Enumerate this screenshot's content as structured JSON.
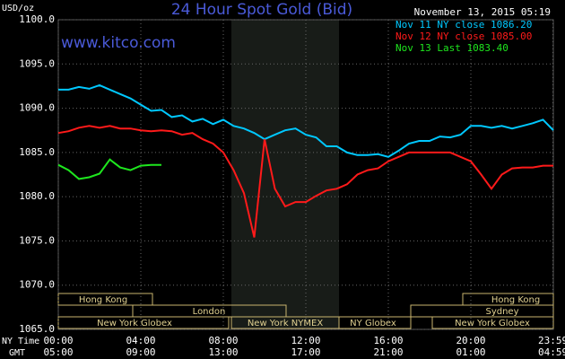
{
  "chart_data": {
    "type": "line",
    "title": "24 Hour Spot Gold (Bid)",
    "y_label": "USD/oz",
    "watermark": "www.kitco.com",
    "timestamp": "November 13, 2015 05:19",
    "x_label": "NY Time",
    "x2_label": "GMT",
    "x": [
      0,
      0.5,
      1,
      1.5,
      2,
      2.5,
      3,
      3.5,
      4,
      4.5,
      5,
      5.5,
      6,
      6.5,
      7,
      7.5,
      8,
      8.5,
      9,
      9.5,
      10,
      10.5,
      11,
      11.5,
      12,
      12.5,
      13,
      13.5,
      14,
      14.5,
      15,
      15.5,
      16,
      16.5,
      17,
      17.5,
      18,
      18.5,
      19,
      19.5,
      20,
      20.5,
      21,
      21.5,
      22,
      22.5,
      23,
      23.5,
      24
    ],
    "series": [
      {
        "name": "Nov 11 NY close 1086.20",
        "color": "#00c8ff",
        "values": [
          1092.1,
          1092.1,
          1092.4,
          1092.2,
          1092.6,
          1092.1,
          1091.6,
          1091.1,
          1090.4,
          1089.7,
          1089.8,
          1089.0,
          1089.2,
          1088.5,
          1088.8,
          1088.2,
          1088.7,
          1088.0,
          1087.7,
          1087.2,
          1086.5,
          1087.0,
          1087.5,
          1087.7,
          1087.0,
          1086.7,
          1085.7,
          1085.7,
          1085.0,
          1084.7,
          1084.7,
          1084.8,
          1084.5,
          1085.2,
          1086.0,
          1086.3,
          1086.3,
          1086.8,
          1086.7,
          1087.0,
          1088.0,
          1088.0,
          1087.8,
          1088.0,
          1087.7,
          1088.0,
          1088.3,
          1088.7,
          1087.5
        ]
      },
      {
        "name": "Nov 12 NY close 1085.00",
        "color": "#ff1a1a",
        "values": [
          1087.2,
          1087.4,
          1087.8,
          1088.0,
          1087.8,
          1088.0,
          1087.7,
          1087.7,
          1087.5,
          1087.4,
          1087.5,
          1087.4,
          1087.0,
          1087.2,
          1086.5,
          1086.0,
          1085.0,
          1083.0,
          1080.4,
          1075.4,
          1086.5,
          1080.9,
          1078.9,
          1079.4,
          1079.4,
          1080.1,
          1080.7,
          1080.9,
          1081.4,
          1082.5,
          1083.0,
          1083.2,
          1084.0,
          1084.5,
          1085.0,
          1085.0,
          1085.0,
          1085.0,
          1085.0,
          1084.5,
          1084.0,
          1082.5,
          1080.9,
          1082.5,
          1083.2,
          1083.3,
          1083.3,
          1083.5,
          1083.5
        ]
      },
      {
        "name": "Nov 13 Last 1083.40",
        "color": "#1ee61e",
        "values": [
          1083.6,
          1083.0,
          1082.0,
          1082.2,
          1082.6,
          1084.2,
          1083.3,
          1083.0,
          1083.5,
          1083.6,
          1083.6,
          null,
          null,
          null,
          null,
          null,
          null,
          null,
          null,
          null,
          null,
          null,
          null,
          null,
          null,
          null,
          null,
          null,
          null,
          null,
          null,
          null,
          null,
          null,
          null,
          null,
          null,
          null,
          null,
          null,
          null,
          null,
          null,
          null,
          null,
          null,
          null,
          null,
          null
        ]
      }
    ],
    "xlim": [
      0,
      24
    ],
    "ylim": [
      1065,
      1100
    ],
    "yticks": [
      {
        "value": 1065,
        "label": "1065.0"
      },
      {
        "value": 1070,
        "label": "1070.0"
      },
      {
        "value": 1075,
        "label": "1075.0"
      },
      {
        "value": 1080,
        "label": "1080.0"
      },
      {
        "value": 1085,
        "label": "1085.0"
      },
      {
        "value": 1090,
        "label": "1090.0"
      },
      {
        "value": 1095,
        "label": "1095.0"
      },
      {
        "value": 1100,
        "label": "1100.0"
      }
    ],
    "xticks": [
      {
        "value": 0,
        "label": "00:00"
      },
      {
        "value": 4,
        "label": "04:00"
      },
      {
        "value": 8,
        "label": "08:00"
      },
      {
        "value": 12,
        "label": "12:00"
      },
      {
        "value": 16,
        "label": "16:00"
      },
      {
        "value": 20,
        "label": "20:00"
      },
      {
        "value": 23.98,
        "label": "23:59"
      }
    ],
    "x2ticks": [
      {
        "value": 0,
        "label": "05:00"
      },
      {
        "value": 4,
        "label": "09:00"
      },
      {
        "value": 8,
        "label": "13:00"
      },
      {
        "value": 12,
        "label": "17:00"
      },
      {
        "value": 16,
        "label": "21:00"
      },
      {
        "value": 20,
        "label": "01:00"
      },
      {
        "value": 23.98,
        "label": "04:59"
      }
    ],
    "sessions": [
      "Hong Kong",
      "Hong Kong",
      "London",
      "Sydney",
      "New York Globex",
      "New York NYMEX",
      "NY Globex",
      "New York Globex"
    ],
    "grid": true,
    "legend": "upper right"
  }
}
